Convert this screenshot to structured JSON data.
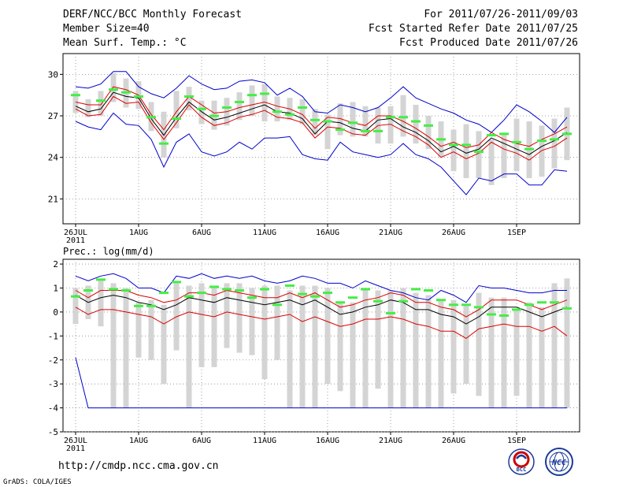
{
  "header": {
    "title": "DERF/NCC/BCC Monthly Forecast",
    "member_size": "Member Size=40",
    "variable": "Mean Surf. Temp.: °C",
    "period": "For 2011/07/26-2011/09/03",
    "started": "Fcst Started Refer Date 2011/07/25",
    "produced": "Fcst Produced Date 2011/07/26"
  },
  "footer": {
    "url": "http://cmdp.ncc.cma.gov.cn",
    "credit": "GrADS: COLA/IGES"
  },
  "logos": {
    "bcc_label": "BCC",
    "ncc_label": "NCC",
    "bcc_color": "#1a3a9a",
    "ncc_color": "#1a3a9a",
    "accent_red": "#cc0000"
  },
  "colors": {
    "box": "#d4d4d4",
    "mean": "#000000",
    "spread": "#dd0000",
    "extreme": "#0000cc",
    "observed": "#44ee44",
    "grid": "#888888"
  },
  "chart_data": [
    {
      "type": "box-plot",
      "title": "Mean Surf. Temp.: °C",
      "xlabel": "",
      "ylabel": "°C",
      "x_days": [
        0,
        1,
        2,
        3,
        4,
        5,
        6,
        7,
        8,
        9,
        10,
        11,
        12,
        13,
        14,
        15,
        16,
        17,
        18,
        19,
        20,
        21,
        22,
        23,
        24,
        25,
        26,
        27,
        28,
        29,
        30,
        31,
        32,
        33,
        34,
        35,
        36,
        37,
        38,
        39
      ],
      "x_tick_days": [
        0,
        5,
        10,
        15,
        20,
        25,
        30,
        35
      ],
      "x_tick_labels": [
        "26JUL",
        "1AUG",
        "6AUG",
        "11AUG",
        "16AUG",
        "21AUG",
        "26AUG",
        "1SEP"
      ],
      "x_tick_sublabel": "2011",
      "xlim": [
        -1,
        40
      ],
      "ylim": [
        19.2,
        31.5
      ],
      "y_ticks": [
        21,
        24,
        27,
        30
      ],
      "series": {
        "box_low": [
          27.2,
          26.9,
          27.0,
          28.0,
          27.6,
          27.5,
          25.9,
          24.0,
          26.1,
          27.4,
          26.4,
          26.0,
          26.3,
          26.7,
          27.0,
          26.6,
          26.6,
          26.7,
          26.4,
          25.6,
          24.6,
          25.6,
          25.5,
          25.5,
          25.0,
          25.0,
          25.5,
          25.0,
          24.6,
          24.0,
          23.0,
          22.5,
          22.5,
          22.0,
          22.5,
          23.0,
          22.5,
          22.6,
          23.2,
          23.8
        ],
        "box_high": [
          28.8,
          28.2,
          28.8,
          30.1,
          29.7,
          29.5,
          28.0,
          27.3,
          28.8,
          29.1,
          28.1,
          28.1,
          28.3,
          28.7,
          29.2,
          29.3,
          28.4,
          28.3,
          28.2,
          27.5,
          27.1,
          27.9,
          28.0,
          27.7,
          27.6,
          27.7,
          28.5,
          27.8,
          27.0,
          26.6,
          26.0,
          26.4,
          25.9,
          25.3,
          25.7,
          26.8,
          26.6,
          26.3,
          26.8,
          27.6
        ],
        "max": [
          29.1,
          29.0,
          29.3,
          30.2,
          30.2,
          29.1,
          28.6,
          28.3,
          29.0,
          29.9,
          29.3,
          28.9,
          29.0,
          29.5,
          29.6,
          29.4,
          28.5,
          29.0,
          28.4,
          27.3,
          27.2,
          27.8,
          27.6,
          27.3,
          27.6,
          28.3,
          29.1,
          28.3,
          27.9,
          27.5,
          27.2,
          26.7,
          26.4,
          25.8,
          26.7,
          27.8,
          27.3,
          26.6,
          25.8,
          26.9
        ],
        "mean_plus": [
          28.0,
          27.8,
          27.8,
          29.1,
          28.9,
          28.5,
          27.1,
          26.0,
          27.3,
          28.4,
          27.8,
          27.2,
          27.3,
          27.6,
          27.8,
          28.0,
          27.7,
          27.5,
          27.1,
          26.1,
          26.9,
          26.8,
          26.5,
          26.3,
          27.0,
          27.0,
          26.6,
          26.1,
          25.5,
          24.8,
          25.1,
          24.7,
          24.9,
          25.8,
          25.3,
          25.0,
          24.8,
          25.3,
          25.7,
          26.2
        ],
        "mean": [
          27.7,
          27.3,
          27.5,
          28.7,
          28.4,
          28.3,
          26.8,
          25.6,
          26.9,
          28.0,
          27.3,
          26.7,
          26.9,
          27.2,
          27.5,
          27.8,
          27.3,
          27.2,
          26.8,
          25.7,
          26.6,
          26.5,
          26.1,
          25.9,
          26.7,
          26.8,
          26.2,
          25.8,
          25.2,
          24.4,
          24.8,
          24.3,
          24.6,
          25.4,
          25.0,
          24.6,
          24.2,
          24.8,
          25.2,
          25.8
        ],
        "mean_minus": [
          27.5,
          27.0,
          27.1,
          28.4,
          27.9,
          28.0,
          26.5,
          25.3,
          26.5,
          27.8,
          26.9,
          26.3,
          26.5,
          26.9,
          27.1,
          27.4,
          26.9,
          26.8,
          26.5,
          25.4,
          26.2,
          26.1,
          25.7,
          25.6,
          26.3,
          26.4,
          25.9,
          25.5,
          24.9,
          24.0,
          24.4,
          23.9,
          24.3,
          25.1,
          24.6,
          24.3,
          23.8,
          24.5,
          24.8,
          25.4
        ],
        "min": [
          26.6,
          26.2,
          26.0,
          27.2,
          26.4,
          26.3,
          25.3,
          23.3,
          25.1,
          25.7,
          24.4,
          24.1,
          24.4,
          25.1,
          24.6,
          25.4,
          25.4,
          25.5,
          24.2,
          23.9,
          23.8,
          25.1,
          24.4,
          24.2,
          24.0,
          24.2,
          25.0,
          24.2,
          23.9,
          23.3,
          22.3,
          21.3,
          22.5,
          22.3,
          22.8,
          22.8,
          22.0,
          22.0,
          23.1,
          23.0
        ],
        "observed": [
          28.5,
          null,
          28.1,
          28.9,
          28.7,
          28.4,
          26.9,
          25.0,
          26.8,
          28.4,
          27.5,
          27.0,
          27.6,
          28.0,
          28.5,
          28.6,
          27.3,
          27.1,
          27.6,
          26.7,
          26.6,
          26.0,
          26.5,
          25.9,
          25.9,
          26.9,
          26.9,
          26.6,
          26.3,
          25.3,
          24.9,
          24.9,
          24.4,
          25.6,
          25.7,
          25.1,
          24.6,
          25.2,
          25.3,
          25.7
        ]
      }
    },
    {
      "type": "box-plot",
      "title": "Prec.: log(mm/d)",
      "xlabel": "",
      "ylabel": "log(mm/d)",
      "x_days": [
        0,
        1,
        2,
        3,
        4,
        5,
        6,
        7,
        8,
        9,
        10,
        11,
        12,
        13,
        14,
        15,
        16,
        17,
        18,
        19,
        20,
        21,
        22,
        23,
        24,
        25,
        26,
        27,
        28,
        29,
        30,
        31,
        32,
        33,
        34,
        35,
        36,
        37,
        38,
        39
      ],
      "x_tick_days": [
        0,
        5,
        10,
        15,
        20,
        25,
        30,
        35
      ],
      "x_tick_labels": [
        "26JUL",
        "1AUG",
        "6AUG",
        "11AUG",
        "16AUG",
        "21AUG",
        "26AUG",
        "1SEP"
      ],
      "x_tick_sublabel": "2011",
      "xlim": [
        -1,
        40
      ],
      "ylim": [
        -5,
        2.2
      ],
      "y_ticks": [
        -5,
        -4,
        -3,
        -2,
        -1,
        0,
        1,
        2
      ],
      "series": {
        "box_low": [
          -0.5,
          -0.3,
          -0.6,
          -4.0,
          -4.0,
          -1.9,
          -2.0,
          -3.0,
          -1.6,
          -4.0,
          -2.3,
          -2.3,
          -1.5,
          -1.7,
          -1.8,
          -2.8,
          -2.0,
          -4.0,
          -4.0,
          -4.0,
          -3.0,
          -3.3,
          -4.0,
          -4.0,
          -3.2,
          -4.0,
          -4.0,
          -4.0,
          -4.0,
          -4.0,
          -3.4,
          -3.0,
          -3.5,
          -4.0,
          -4.0,
          -3.5,
          -4.0,
          -4.0,
          -4.0,
          -4.0
        ],
        "box_high": [
          1.0,
          1.1,
          1.3,
          1.2,
          1.0,
          0.4,
          0.5,
          0.3,
          1.2,
          1.1,
          1.2,
          1.1,
          1.2,
          1.2,
          1.0,
          1.1,
          1.1,
          0.9,
          1.1,
          1.1,
          1.0,
          0.4,
          0.4,
          0.9,
          0.9,
          0.9,
          1.0,
          0.8,
          0.7,
          0.5,
          0.5,
          0.3,
          0.8,
          0.6,
          0.6,
          0.1,
          0.4,
          0.2,
          1.2,
          1.4
        ],
        "max": [
          1.5,
          1.3,
          1.5,
          1.6,
          1.4,
          1.0,
          1.0,
          0.8,
          1.5,
          1.4,
          1.6,
          1.4,
          1.5,
          1.4,
          1.5,
          1.3,
          1.2,
          1.3,
          1.5,
          1.4,
          1.2,
          1.2,
          1.0,
          1.3,
          1.1,
          0.9,
          0.8,
          0.6,
          0.5,
          0.9,
          0.7,
          0.4,
          1.1,
          1.0,
          1.0,
          0.9,
          0.8,
          0.8,
          0.9,
          0.9
        ],
        "mean_plus": [
          0.9,
          0.6,
          0.9,
          0.9,
          0.9,
          0.7,
          0.6,
          0.4,
          0.5,
          0.8,
          0.8,
          0.7,
          0.9,
          0.8,
          0.7,
          0.6,
          0.6,
          0.8,
          0.6,
          0.8,
          0.5,
          0.2,
          0.3,
          0.5,
          0.6,
          0.8,
          0.7,
          0.4,
          0.4,
          0.2,
          0.1,
          -0.2,
          0.1,
          0.5,
          0.5,
          0.5,
          0.3,
          0.1,
          0.3,
          0.5
        ],
        "mean": [
          0.7,
          0.4,
          0.6,
          0.7,
          0.6,
          0.4,
          0.3,
          0.1,
          0.3,
          0.6,
          0.5,
          0.4,
          0.6,
          0.5,
          0.4,
          0.3,
          0.4,
          0.5,
          0.3,
          0.5,
          0.2,
          -0.1,
          0.0,
          0.2,
          0.3,
          0.5,
          0.4,
          0.1,
          0.1,
          -0.1,
          -0.2,
          -0.5,
          -0.2,
          0.2,
          0.2,
          0.2,
          0.0,
          -0.2,
          0.0,
          0.2
        ],
        "mean_minus": [
          0.2,
          -0.1,
          0.1,
          0.1,
          0.0,
          -0.1,
          -0.2,
          -0.5,
          -0.2,
          0.0,
          -0.1,
          -0.2,
          0.0,
          -0.1,
          -0.2,
          -0.3,
          -0.2,
          -0.1,
          -0.4,
          -0.2,
          -0.4,
          -0.6,
          -0.5,
          -0.3,
          -0.3,
          -0.2,
          -0.3,
          -0.5,
          -0.6,
          -0.8,
          -0.8,
          -1.1,
          -0.7,
          -0.6,
          -0.5,
          -0.6,
          -0.6,
          -0.8,
          -0.6,
          -1.0
        ],
        "min": [
          -1.9,
          -4.0,
          -4.0,
          -4.0,
          -4.0,
          -4.0,
          -4.0,
          -4.0,
          -4.0,
          -4.0,
          -4.0,
          -4.0,
          -4.0,
          -4.0,
          -4.0,
          -4.0,
          -4.0,
          -4.0,
          -4.0,
          -4.0,
          -4.0,
          -4.0,
          -4.0,
          -4.0,
          -4.0,
          -4.0,
          -4.0,
          -4.0,
          -4.0,
          -4.0,
          -4.0,
          -4.0,
          -4.0,
          -4.0,
          -4.0,
          -4.0,
          -4.0,
          -4.0,
          -4.0,
          -4.0
        ],
        "observed": [
          0.65,
          0.9,
          1.35,
          0.95,
          0.9,
          0.25,
          0.25,
          0.8,
          1.25,
          0.65,
          0.8,
          1.05,
          0.95,
          0.9,
          0.6,
          0.95,
          0.3,
          1.1,
          0.75,
          0.65,
          0.8,
          0.4,
          0.6,
          0.95,
          0.45,
          -0.05,
          0.45,
          0.95,
          0.9,
          0.5,
          0.3,
          0.3,
          0.2,
          -0.1,
          -0.15,
          0.1,
          0.3,
          0.4,
          0.4,
          0.15
        ]
      }
    }
  ]
}
